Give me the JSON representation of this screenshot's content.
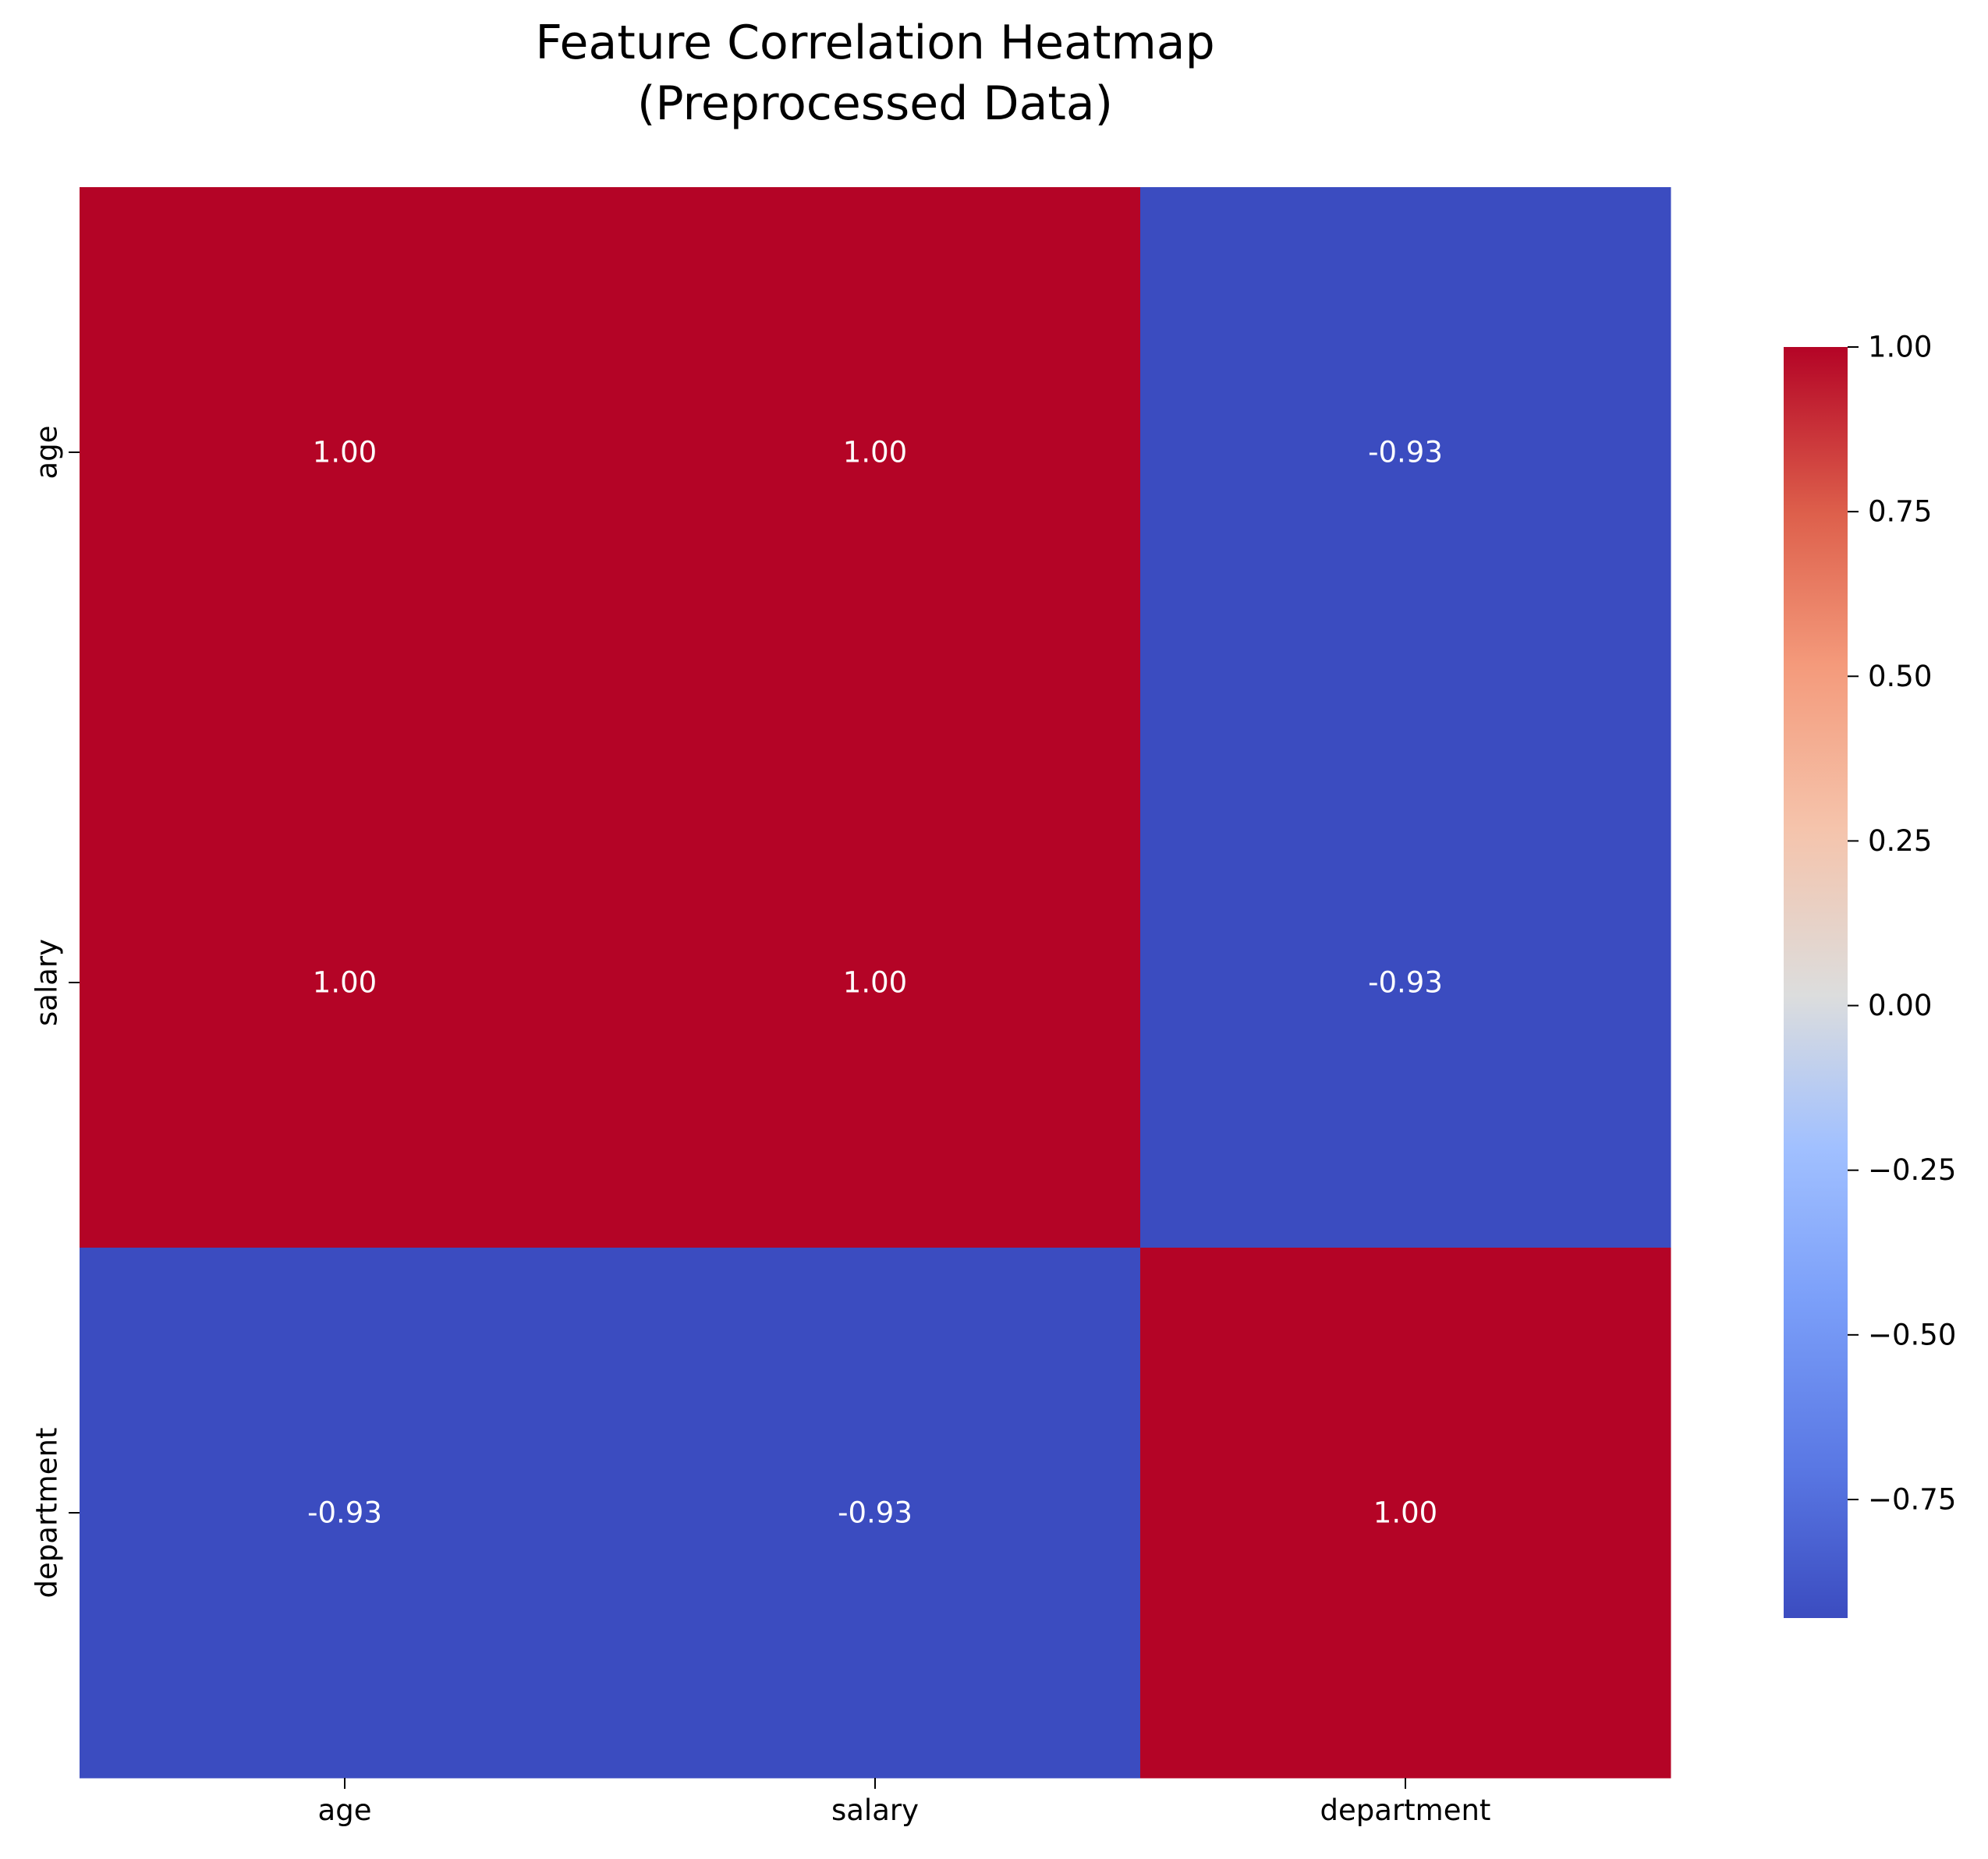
{
  "chart_data": {
    "type": "heatmap",
    "title_lines": [
      "Feature Correlation Heatmap",
      "(Preprocessed Data)"
    ],
    "xlabel": "",
    "ylabel": "",
    "x_categories": [
      "age",
      "salary",
      "department"
    ],
    "y_categories": [
      "age",
      "salary",
      "department"
    ],
    "values": [
      [
        1.0,
        1.0,
        -0.93
      ],
      [
        1.0,
        1.0,
        -0.93
      ],
      [
        -0.93,
        -0.93,
        1.0
      ]
    ],
    "cell_labels": [
      [
        "1.00",
        "1.00",
        "-0.93"
      ],
      [
        "1.00",
        "1.00",
        "-0.93"
      ],
      [
        "-0.93",
        "-0.93",
        "1.00"
      ]
    ],
    "colormap": "coolwarm",
    "color_range": [
      -0.93,
      1.0
    ],
    "colorbar": {
      "ticks": [
        1.0,
        0.75,
        0.5,
        0.25,
        0.0,
        -0.25,
        -0.5,
        -0.75
      ],
      "tick_labels": [
        "1.00",
        "0.75",
        "0.50",
        "0.25",
        "0.00",
        "−0.25",
        "−0.50",
        "−0.75"
      ]
    },
    "annotation_color": "#ffffff",
    "grid": false,
    "legend": "colorbar-right"
  }
}
